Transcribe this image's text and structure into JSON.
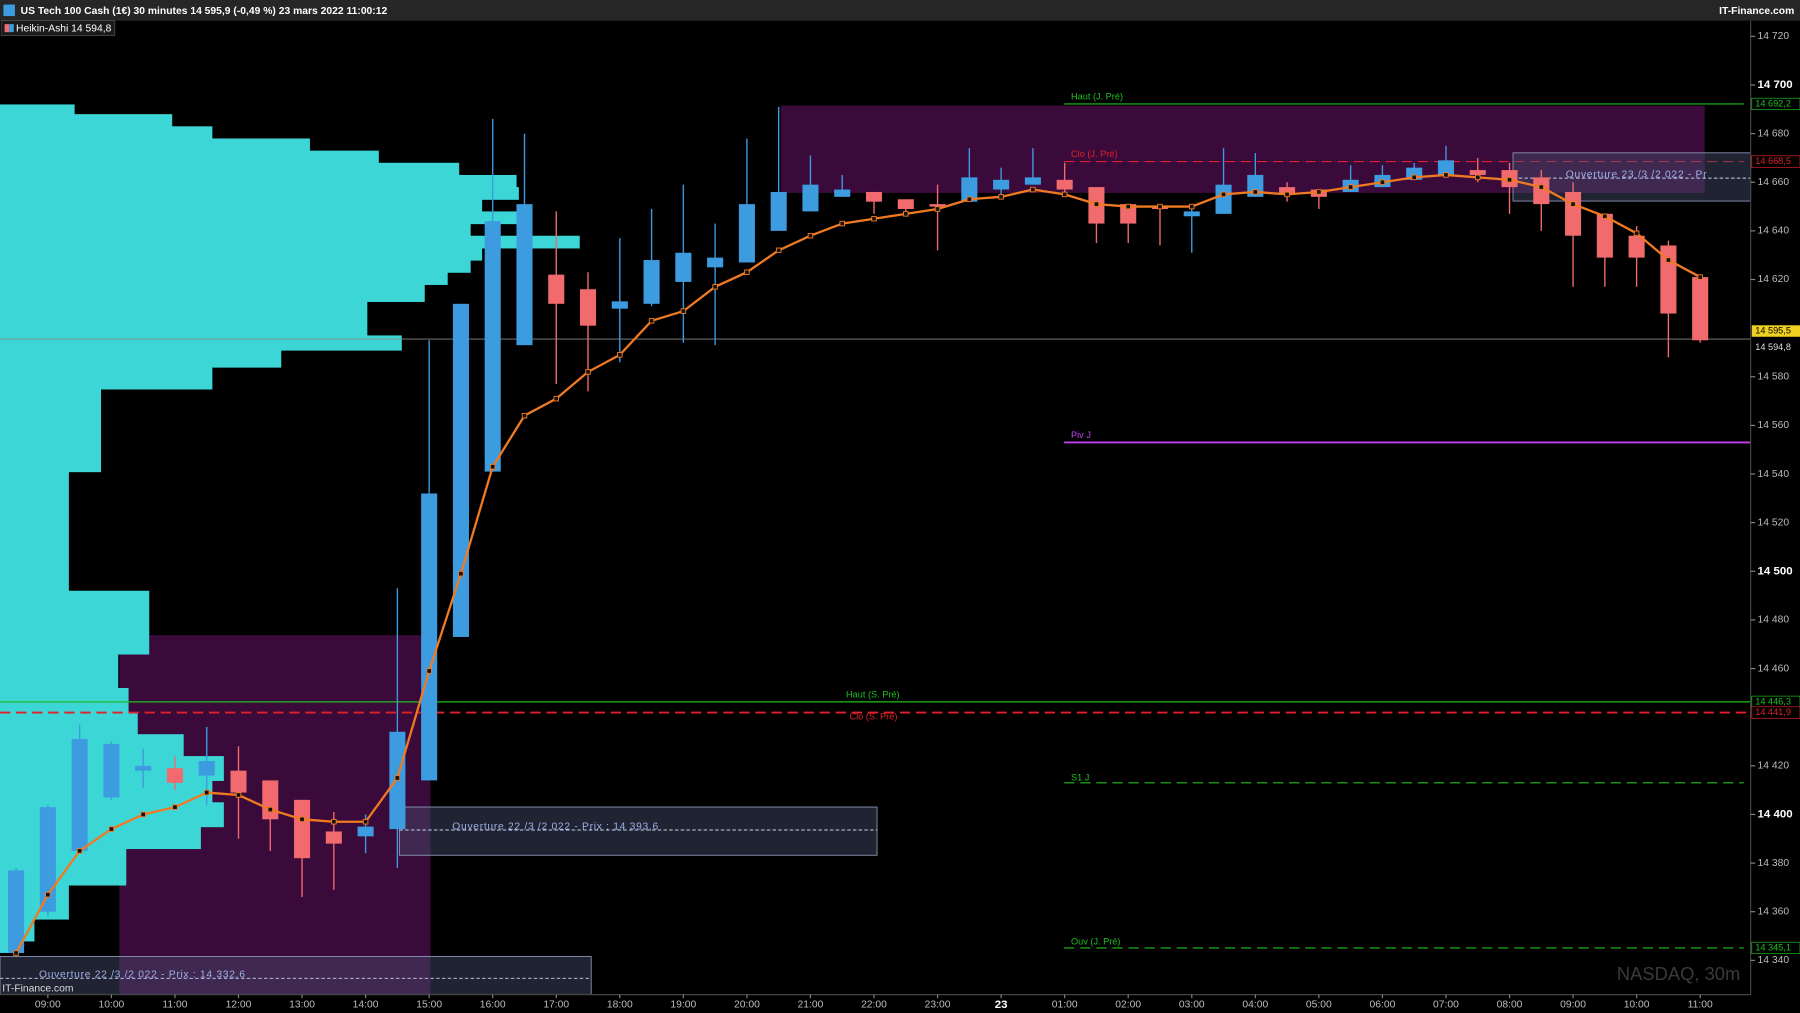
{
  "chart_data": {
    "type": "candlestick",
    "title": "US Tech 100 Cash (1€) 30 minutes 14 595,9 (-0,49 %) 23 mars 2022 11:00:12",
    "source": "IT-Finance.com",
    "legend": "Heikin-Ashi 14 594,8",
    "watermark": "NASDAQ, 30m",
    "footer": "IT-Finance.com",
    "up_color": "#3d9be0",
    "down_color": "#f06a6e",
    "categories": [
      null,
      "09:00",
      null,
      "10:00",
      null,
      "11:00",
      null,
      "12:00",
      null,
      "13:00",
      null,
      "14:00",
      null,
      "15:00",
      null,
      "16:00",
      null,
      "17:00",
      null,
      "18:00",
      null,
      "19:00",
      null,
      "20:00",
      null,
      "21:00",
      null,
      "22:00",
      null,
      "23:00",
      null,
      "23",
      null,
      "01:00",
      null,
      "02:00",
      null,
      "03:00",
      null,
      "04:00",
      null,
      "05:00",
      null,
      "06:00",
      null,
      "07:00",
      null,
      "08:00",
      null,
      "09:00",
      null,
      "10:00",
      null,
      "11:00"
    ],
    "open": [
      14343,
      14360,
      14385,
      14407,
      14418,
      14419,
      14416,
      14418,
      14414,
      14406,
      14393,
      14391,
      14394,
      14414,
      14473,
      14541,
      14593,
      14622,
      14616,
      14608,
      14610,
      14619,
      14625,
      14627,
      14640,
      14648,
      14654,
      14656,
      14653,
      14651,
      14652,
      14657,
      14659,
      14661,
      14658,
      14651,
      14650,
      14646,
      14647,
      14654,
      14658,
      14657,
      14656,
      14658,
      14661,
      14663,
      14665,
      14665,
      14662,
      14656,
      14647,
      14638,
      14634,
      14621
    ],
    "high": [
      14378,
      14404,
      14437,
      14430,
      14427,
      14424,
      14436,
      14428,
      14414,
      14406,
      14401,
      14400,
      14493,
      14595,
      14610,
      14686,
      14680,
      14648,
      14623,
      14637,
      14649,
      14659,
      14643,
      14678,
      14691,
      14671,
      14663,
      14656,
      14653,
      14659,
      14674,
      14666,
      14674,
      14668,
      14658,
      14651,
      14650,
      14650,
      14674,
      14672,
      14660,
      14657,
      14667,
      14667,
      14668,
      14675,
      14670,
      14668,
      14665,
      14660,
      14647,
      14642,
      14636,
      14621
    ],
    "low": [
      14342,
      14358,
      14384,
      14406,
      14411,
      14410,
      14404,
      14390,
      14385,
      14366,
      14369,
      14384,
      14378,
      14414,
      14473,
      14541,
      14593,
      14577,
      14574,
      14586,
      14609,
      14594,
      14593,
      14627,
      14640,
      14648,
      14654,
      14647,
      14647,
      14632,
      14652,
      14654,
      14659,
      14656,
      14635,
      14635,
      14634,
      14631,
      14647,
      14654,
      14652,
      14649,
      14656,
      14658,
      14661,
      14663,
      14660,
      14647,
      14640,
      14617,
      14617,
      14617,
      14588,
      14594
    ],
    "close": [
      14377,
      14403,
      14431,
      14429,
      14420,
      14413,
      14422,
      14409,
      14398,
      14382,
      14388,
      14395,
      14434,
      14532,
      14610,
      14644,
      14651,
      14610,
      14601,
      14611,
      14628,
      14631,
      14629,
      14651,
      14656,
      14659,
      14657,
      14652,
      14649,
      14650,
      14662,
      14661,
      14662,
      14657,
      14643,
      14643,
      14649,
      14648,
      14659,
      14663,
      14655,
      14654,
      14661,
      14663,
      14666,
      14669,
      14663,
      14658,
      14651,
      14638,
      14629,
      14629,
      14606,
      14595
    ],
    "ma": {
      "color": "#f07a22",
      "values": [
        14343,
        14367,
        14385,
        14394,
        14400,
        14403,
        14409,
        14408,
        14402,
        14398,
        14397,
        14397,
        14415,
        14459,
        14499,
        14543,
        14564,
        14571,
        14582,
        14589,
        14603,
        14607,
        14617,
        14623,
        14632,
        14638,
        14643,
        14645,
        14647,
        14649,
        14653,
        14654,
        14657,
        14655,
        14651,
        14650,
        14650,
        14650,
        14655,
        14656,
        14655,
        14656,
        14658,
        14660,
        14662,
        14663,
        14662,
        14661,
        14658,
        14651,
        14646,
        14639,
        14628,
        14621
      ]
    },
    "volume_profile": {
      "color": "#3dd6d6",
      "prices": [
        14692,
        14688,
        14683,
        14678,
        14673,
        14668,
        14663,
        14658,
        14653,
        14648,
        14643,
        14638,
        14633,
        14628,
        14623,
        14618,
        14611,
        14604,
        14597,
        14591,
        14584,
        14575,
        14556,
        14541,
        14522,
        14503,
        14492,
        14475,
        14466,
        14452,
        14442,
        14433,
        14424,
        14414,
        14405,
        14395,
        14386,
        14371,
        14357,
        14348
      ],
      "values": [
        65,
        150,
        185,
        270,
        330,
        400,
        450,
        452,
        420,
        455,
        410,
        505,
        420,
        410,
        390,
        370,
        320,
        320,
        350,
        245,
        185,
        88,
        88,
        60,
        60,
        60,
        130,
        130,
        103,
        112,
        120,
        160,
        195,
        185,
        195,
        175,
        110,
        60,
        30,
        15
      ]
    },
    "zones": [
      {
        "color": "#3a0a3a",
        "top": 14691.5,
        "bottom": 14655.6
      },
      {
        "color": "#3a0a3a",
        "top": 14473.7,
        "bottom": 14325.9
      }
    ],
    "levels": [
      {
        "label": "Haut (J. Pré)",
        "value": 14692.2,
        "value_label": "14 692,2",
        "color": "#1fbf1f",
        "dashed": false
      },
      {
        "label": "Clo (J. Pré)",
        "value": 14668.5,
        "value_label": "14 668,5",
        "color": "#e0202a",
        "dashed": true
      },
      {
        "label": "Piv J",
        "value": 14553,
        "color": "#c040f0",
        "dashed": false
      },
      {
        "label": "Haut (S. Pré)",
        "value": 14446.3,
        "value_label": "14 446,3",
        "color": "#1fbf1f",
        "dashed": false
      },
      {
        "label": "Clo (S. Pré)",
        "value": 14441.9,
        "value_label": "14 441,9",
        "color": "#e0202a",
        "dashed": true
      },
      {
        "label": "S1 J",
        "value": 14413,
        "color": "#1fbf1f",
        "dashed": true
      },
      {
        "label": "Ouv (J. Pré)",
        "value": 14345.1,
        "value_label": "14 345,1",
        "color": "#1fbf1f",
        "dashed": true
      }
    ],
    "openings": [
      {
        "label": "Ouverture 22 /3 /2 022 - Prix : 14 393,6",
        "value": 14393.6
      },
      {
        "label": "Ouverture 22 /3 /2 022 - Prix : 14 332,6",
        "value": 14332.6
      },
      {
        "label": "Ouverture 23 /3 /2 022 - Pr",
        "value": 14661.7
      }
    ],
    "last": {
      "value": 14595.5,
      "label": "14 595,5"
    },
    "ha_last": {
      "value": 14594.8,
      "label": "14 594,8"
    },
    "ylim": [
      14325.9,
      14725.5
    ],
    "yticks": [
      {
        "value": 14340,
        "label": "14 340"
      },
      {
        "value": 14360,
        "label": "14 360"
      },
      {
        "value": 14380,
        "label": "14 380"
      },
      {
        "value": 14400,
        "label": "14 400"
      },
      {
        "value": 14420,
        "label": "14 420"
      },
      {
        "value": 14460,
        "label": "14 460"
      },
      {
        "value": 14480,
        "label": "14 480"
      },
      {
        "value": 14500,
        "label": "14 500"
      },
      {
        "value": 14520,
        "label": "14 520"
      },
      {
        "value": 14540,
        "label": "14 540"
      },
      {
        "value": 14560,
        "label": "14 560"
      },
      {
        "value": 14580,
        "label": "14 580"
      },
      {
        "value": 14620,
        "label": "14 620"
      },
      {
        "value": 14640,
        "label": "14 640"
      },
      {
        "value": 14660,
        "label": "14 660"
      },
      {
        "value": 14680,
        "label": "14 680"
      },
      {
        "value": 14700,
        "label": "14 700"
      },
      {
        "value": 14720,
        "label": "14 720"
      }
    ]
  }
}
